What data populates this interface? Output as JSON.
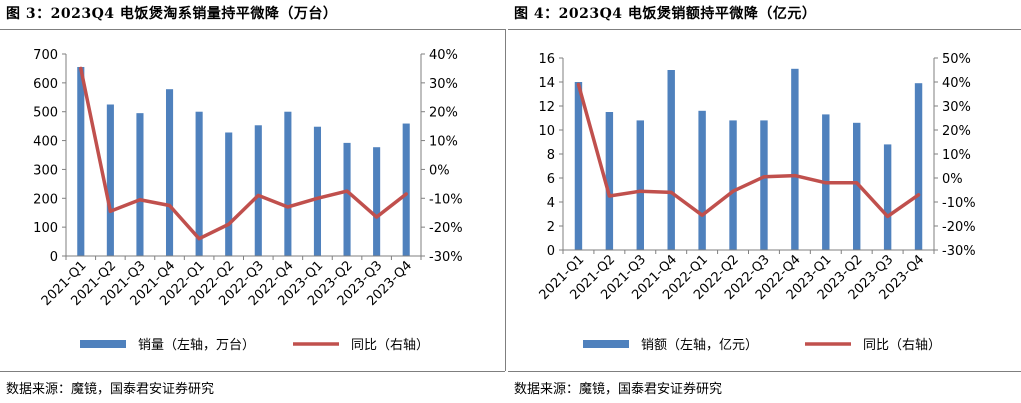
{
  "charts": [
    {
      "figure_title": "图 3：2023Q4 电饭煲淘系销量持平微降（万台）",
      "source": "数据来源：魔镜，国泰君安证券研究",
      "legend": {
        "bar_label": "销量（左轴，万台）",
        "line_label": "同比（右轴）"
      },
      "colors": {
        "bar": "#4f81bd",
        "line": "#c0504d"
      }
    },
    {
      "figure_title": "图 4：2023Q4 电饭煲销额持平微降（亿元）",
      "source": "数据来源：魔镜，国泰君安证券研究",
      "legend": {
        "bar_label": "销额（左轴，亿元）",
        "line_label": "同比（右轴）"
      },
      "colors": {
        "bar": "#4f81bd",
        "line": "#c0504d"
      }
    }
  ],
  "chart_data": [
    {
      "type": "bar",
      "categories": [
        "2021-Q1",
        "2021-Q2",
        "2021-Q3",
        "2021-Q4",
        "2022-Q1",
        "2022-Q2",
        "2022-Q3",
        "2022-Q4",
        "2023-Q1",
        "2023-Q2",
        "2023-Q3",
        "2023-Q4"
      ],
      "series": [
        {
          "name": "销量（左轴，万台）",
          "type": "bar",
          "axis": "left",
          "values": [
            655,
            525,
            495,
            578,
            500,
            428,
            453,
            500,
            448,
            392,
            377,
            459
          ]
        },
        {
          "name": "同比（右轴）",
          "type": "line",
          "axis": "right",
          "values": [
            0.35,
            -0.145,
            -0.105,
            -0.125,
            -0.24,
            -0.19,
            -0.09,
            -0.13,
            -0.1,
            -0.075,
            -0.165,
            -0.085
          ]
        }
      ],
      "left_axis": {
        "min": 0,
        "max": 700,
        "step": 100,
        "ticks": [
          "0",
          "100",
          "200",
          "300",
          "400",
          "500",
          "600",
          "700"
        ]
      },
      "right_axis": {
        "min": -0.3,
        "max": 0.4,
        "step": 0.1,
        "ticks": [
          "-30%",
          "-20%",
          "-10%",
          "0%",
          "10%",
          "20%",
          "30%",
          "40%"
        ]
      },
      "grid": false,
      "legend_position": "bottom"
    },
    {
      "type": "bar",
      "categories": [
        "2021-Q1",
        "2021-Q2",
        "2021-Q3",
        "2021-Q4",
        "2022-Q1",
        "2022-Q2",
        "2022-Q3",
        "2022-Q4",
        "2023-Q1",
        "2023-Q2",
        "2023-Q3",
        "2023-Q4"
      ],
      "series": [
        {
          "name": "销额（左轴，亿元）",
          "type": "bar",
          "axis": "left",
          "values": [
            14.0,
            11.5,
            10.8,
            15.0,
            11.6,
            10.8,
            10.8,
            15.1,
            11.3,
            10.6,
            8.8,
            13.9
          ]
        },
        {
          "name": "同比（右轴）",
          "type": "line",
          "axis": "right",
          "values": [
            0.39,
            -0.075,
            -0.055,
            -0.06,
            -0.155,
            -0.055,
            0.005,
            0.01,
            -0.02,
            -0.02,
            -0.16,
            -0.07
          ]
        }
      ],
      "left_axis": {
        "min": 0,
        "max": 16,
        "step": 2,
        "ticks": [
          "0",
          "2",
          "4",
          "6",
          "8",
          "10",
          "12",
          "14",
          "16"
        ]
      },
      "right_axis": {
        "min": -0.3,
        "max": 0.5,
        "step": 0.1,
        "ticks": [
          "-30%",
          "-20%",
          "-10%",
          "0%",
          "10%",
          "20%",
          "30%",
          "40%",
          "50%"
        ]
      },
      "grid": false,
      "legend_position": "bottom"
    }
  ]
}
